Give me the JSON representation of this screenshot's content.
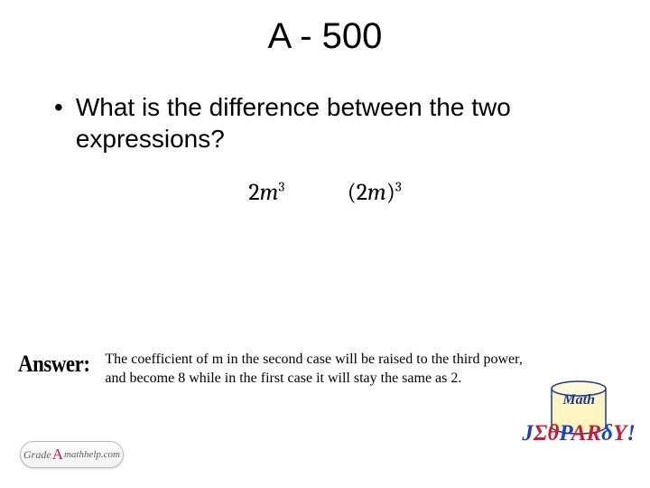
{
  "title": "A - 500",
  "question": {
    "bullet": "•",
    "text": "What is the difference between the two expressions?"
  },
  "expressions": {
    "expr1_html": "2<i>m</i><sup>3</sup>",
    "expr2_html": "(2<i>m</i>)<sup>3</sup>",
    "font_family": "Cambria Math",
    "font_size_pt": 20
  },
  "answer": {
    "label": "Answer:",
    "text": "The coefficient of m in the second case will be raised to the third power, and become 8 while in the first case it will stay the same as 2."
  },
  "site_logo": {
    "text_grade": "Grade",
    "text_a": "A",
    "text_mathhelp": "mathhelp.com"
  },
  "jeopardy": {
    "math_label": "Math",
    "word_parts": [
      {
        "t": "J",
        "c": "b"
      },
      {
        "t": "Σ",
        "c": "r"
      },
      {
        "t": "θ",
        "c": "r"
      },
      {
        "t": "P",
        "c": "b"
      },
      {
        "t": "A",
        "c": "r"
      },
      {
        "t": "R",
        "c": "r"
      },
      {
        "t": "δ",
        "c": "b"
      },
      {
        "t": "Y",
        "c": "r"
      },
      {
        "t": "!",
        "c": "b"
      }
    ],
    "cylinder": {
      "fill": "#fff4c2",
      "stroke": "#1a3a8a",
      "stroke_width": 1.5
    }
  },
  "colors": {
    "background": "#ffffff",
    "text": "#000000",
    "blue": "#2040c0",
    "red": "#c41e3a",
    "dark_blue": "#1a3a8a"
  }
}
